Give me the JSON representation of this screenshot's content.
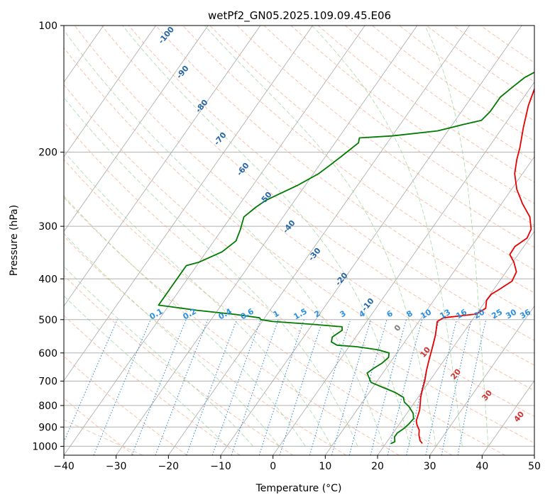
{
  "chart_data": {
    "type": "line",
    "subtype": "skew-t log-p diagram",
    "title": "wetPf2_GN05.2025.109.09.45.E06",
    "xlabel": "Temperature (°C)",
    "ylabel": "Pressure (hPa)",
    "xlim": [
      -40,
      50
    ],
    "ylim": [
      1050,
      100
    ],
    "y_scale": "log",
    "x_ticks": [
      -40,
      -30,
      -20,
      -10,
      0,
      10,
      20,
      30,
      40,
      50
    ],
    "y_ticks": [
      100,
      200,
      300,
      400,
      500,
      600,
      700,
      800,
      900,
      1000
    ],
    "grid": true,
    "series": [
      {
        "role": "temperature",
        "color": "#e60000",
        "points": [
          [
            27.0,
            985
          ],
          [
            26.2,
            970
          ],
          [
            25.2,
            940
          ],
          [
            24.6,
            915
          ],
          [
            23.5,
            890
          ],
          [
            22.8,
            870
          ],
          [
            22.5,
            850
          ],
          [
            22.0,
            820
          ],
          [
            21.2,
            790
          ],
          [
            20.5,
            765
          ],
          [
            19.7,
            730
          ],
          [
            19.1,
            700
          ],
          [
            18.0,
            660
          ],
          [
            17.0,
            620
          ],
          [
            16.0,
            580
          ],
          [
            15.0,
            545
          ],
          [
            13.5,
            505
          ],
          [
            14.2,
            495
          ],
          [
            17.0,
            490
          ],
          [
            20.0,
            485
          ],
          [
            21.0,
            470
          ],
          [
            20.1,
            450
          ],
          [
            20.2,
            435
          ],
          [
            21.0,
            425
          ],
          [
            22.4,
            405
          ],
          [
            22.0,
            385
          ],
          [
            20.2,
            365
          ],
          [
            18.4,
            350
          ],
          [
            18.3,
            335
          ],
          [
            19.5,
            320
          ],
          [
            19.1,
            305
          ],
          [
            17.2,
            285
          ],
          [
            14.0,
            265
          ],
          [
            11.0,
            245
          ],
          [
            8.5,
            225
          ],
          [
            7.0,
            208
          ],
          [
            6.0,
            195
          ],
          [
            4.0,
            175
          ],
          [
            2.0,
            155
          ],
          [
            0.8,
            140
          ],
          [
            0.5,
            130
          ],
          [
            1.0,
            120
          ],
          [
            3.0,
            110
          ],
          [
            5.0,
            100
          ]
        ]
      },
      {
        "role": "dewpoint",
        "color": "#007a00",
        "points": [
          [
            21.0,
            985
          ],
          [
            21.5,
            975
          ],
          [
            20.8,
            950
          ],
          [
            20.8,
            930
          ],
          [
            21.5,
            905
          ],
          [
            21.8,
            885
          ],
          [
            22.0,
            860
          ],
          [
            21.2,
            835
          ],
          [
            19.5,
            805
          ],
          [
            18.0,
            785
          ],
          [
            17.2,
            765
          ],
          [
            15.0,
            745
          ],
          [
            12.0,
            725
          ],
          [
            9.0,
            705
          ],
          [
            7.0,
            670
          ],
          [
            7.5,
            655
          ],
          [
            8.5,
            635
          ],
          [
            9.0,
            615
          ],
          [
            8.5,
            600
          ],
          [
            6.0,
            590
          ],
          [
            1.5,
            580
          ],
          [
            -2.5,
            575
          ],
          [
            -4.0,
            565
          ],
          [
            -4.5,
            550
          ],
          [
            -3.5,
            530
          ],
          [
            -4.0,
            520
          ],
          [
            -10.0,
            513
          ],
          [
            -18.0,
            505
          ],
          [
            -20.5,
            500
          ],
          [
            -21.0,
            495
          ],
          [
            -26.0,
            486
          ],
          [
            -34.0,
            475
          ],
          [
            -40.0,
            465
          ],
          [
            -42.0,
            462
          ],
          [
            -42.0,
            372
          ],
          [
            -40.0,
            365
          ],
          [
            -37.0,
            345
          ],
          [
            -35.8,
            325
          ],
          [
            -36.5,
            305
          ],
          [
            -37.5,
            285
          ],
          [
            -36.5,
            270
          ],
          [
            -35.5,
            260
          ],
          [
            -31.5,
            240
          ],
          [
            -29.0,
            225
          ],
          [
            -28.0,
            215
          ],
          [
            -27.0,
            205
          ],
          [
            -25.5,
            190
          ],
          [
            -26.0,
            185
          ],
          [
            -20.0,
            183
          ],
          [
            -12.0,
            178
          ],
          [
            -8.0,
            172
          ],
          [
            -5.0,
            168
          ],
          [
            -4.5,
            160
          ],
          [
            -4.5,
            148
          ],
          [
            -3.5,
            140
          ],
          [
            -2.5,
            133
          ],
          [
            0.0,
            125
          ],
          [
            1.0,
            115
          ],
          [
            1.7,
            105
          ],
          [
            2.0,
            100
          ]
        ]
      }
    ],
    "isotherm_labels": [
      "-100",
      "-90",
      "-80",
      "-70",
      "-60",
      "-50",
      "-40",
      "-30",
      "-20",
      "-10",
      "0",
      "10",
      "20",
      "30",
      "40"
    ],
    "mixing_ratio_labels": [
      "0.1",
      "0.2",
      "0.4",
      "0.6",
      "1",
      "1.5",
      "2",
      "3",
      "4",
      "6",
      "8",
      "10",
      "13",
      "16",
      "20",
      "25",
      "30",
      "36"
    ]
  }
}
